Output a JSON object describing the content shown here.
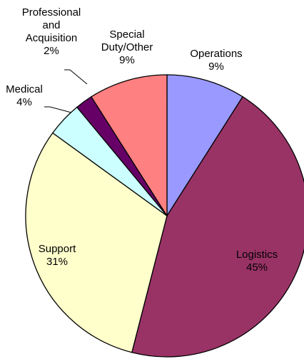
{
  "chart_data": {
    "type": "pie",
    "categories": [
      "Operations",
      "Logistics",
      "Support",
      "Medical",
      "Professional and Acquisition",
      "Special Duty/Other"
    ],
    "values": [
      9,
      45,
      31,
      4,
      2,
      9
    ],
    "value_labels": [
      "9%",
      "45%",
      "31%",
      "4%",
      "2%",
      "9%"
    ],
    "colors": [
      "#9999ff",
      "#993366",
      "#ffffcc",
      "#ccffff",
      "#660066",
      "#ff8080"
    ]
  }
}
